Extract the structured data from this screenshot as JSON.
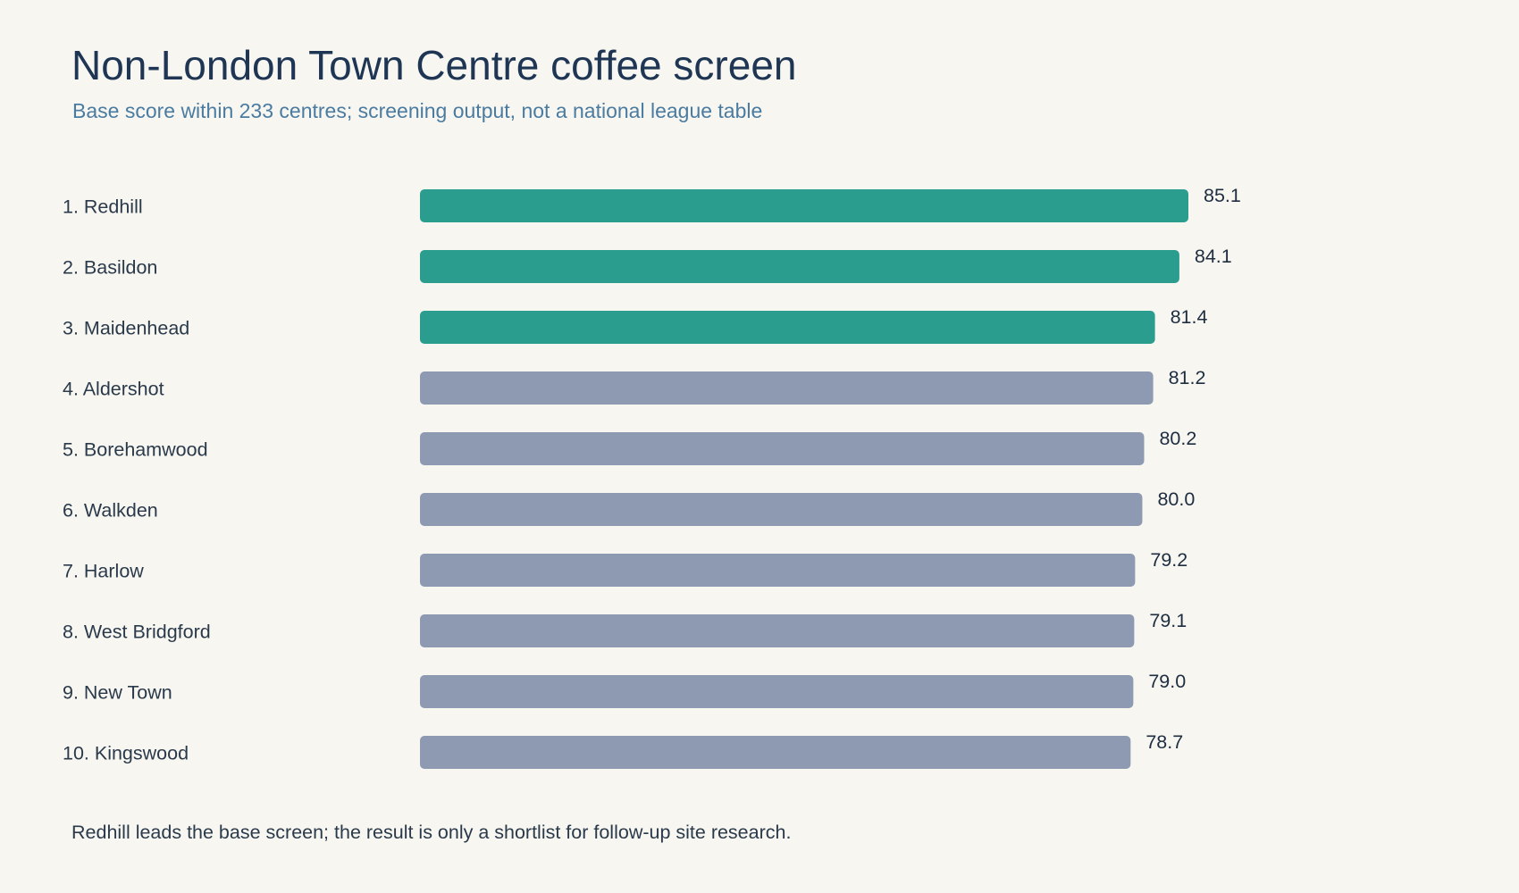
{
  "header": {
    "title": "Non-London Town Centre coffee screen",
    "subtitle": "Base score within 233 centres; screening output, not a national league table"
  },
  "footnote": "Redhill leads the base screen; the result is only a shortlist for follow-up site research.",
  "colors": {
    "background": "#f7f6f1",
    "highlight": "#2a9d8f",
    "other": "#8e9ab1",
    "title": "#1e3553",
    "subtitle": "#4a7ba0"
  },
  "chart_data": {
    "type": "bar",
    "orientation": "horizontal",
    "title": "Non-London Town Centre coffee screen",
    "subtitle": "Base score within 233 centres; screening output, not a national league table",
    "xlabel": "",
    "ylabel": "",
    "grid": false,
    "legend": "none",
    "xlim": [
      0,
      85.1
    ],
    "highlight_count": 3,
    "categories": [
      "1. Redhill",
      "2. Basildon",
      "3. Maidenhead",
      "4. Aldershot",
      "5. Borehamwood",
      "6. Walkden",
      "7. Harlow",
      "8. West Bridgford",
      "9. New Town",
      "10. Kingswood"
    ],
    "values": [
      85.1,
      84.1,
      81.4,
      81.2,
      80.2,
      80.0,
      79.2,
      79.1,
      79.0,
      78.7
    ],
    "value_labels": [
      "85.1",
      "84.1",
      "81.4",
      "81.2",
      "80.2",
      "80.0",
      "79.2",
      "79.1",
      "79.0",
      "78.7"
    ]
  }
}
